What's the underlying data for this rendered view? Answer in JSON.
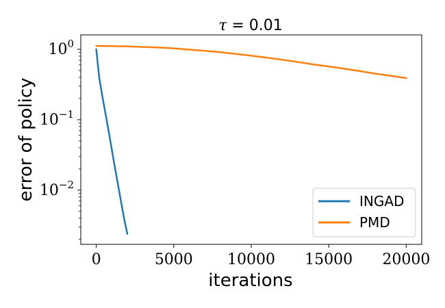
{
  "chart_data": {
    "type": "line",
    "title": "τ = 0.01",
    "title_symbol": "τ",
    "title_rest": " = 0.01",
    "xlabel": "iterations",
    "ylabel": "error of policy",
    "x_scale": "linear",
    "y_scale": "log",
    "xlim": [
      -1000,
      21000
    ],
    "ylim": [
      0.0017,
      1.6
    ],
    "x_ticks": [
      0,
      5000,
      10000,
      15000,
      20000
    ],
    "y_ticks": [
      {
        "value": 1,
        "base": "10",
        "exp": "0"
      },
      {
        "value": 0.1,
        "base": "10",
        "exp": "−1"
      },
      {
        "value": 0.01,
        "base": "10",
        "exp": "−2"
      }
    ],
    "grid": false,
    "legend_position": "bottom-right",
    "series": [
      {
        "name": "INGAD",
        "color": "#1f77b4",
        "x": [
          0,
          100,
          200,
          400,
          600,
          800,
          1000,
          1200,
          1400,
          1600,
          1800,
          2000
        ],
        "y": [
          1.0,
          0.6,
          0.38,
          0.21,
          0.12,
          0.068,
          0.038,
          0.021,
          0.012,
          0.0068,
          0.0039,
          0.0024
        ]
      },
      {
        "name": "PMD",
        "color": "#ff7f0e",
        "x": [
          0,
          1000,
          2000,
          3000,
          4000,
          5000,
          6000,
          7000,
          8000,
          9000,
          10000,
          11000,
          12000,
          13000,
          14000,
          15000,
          16000,
          17000,
          18000,
          19000,
          20000
        ],
        "y": [
          1.12,
          1.11,
          1.1,
          1.08,
          1.06,
          1.03,
          0.99,
          0.95,
          0.91,
          0.86,
          0.81,
          0.76,
          0.71,
          0.66,
          0.61,
          0.57,
          0.53,
          0.49,
          0.45,
          0.42,
          0.39
        ]
      }
    ]
  }
}
